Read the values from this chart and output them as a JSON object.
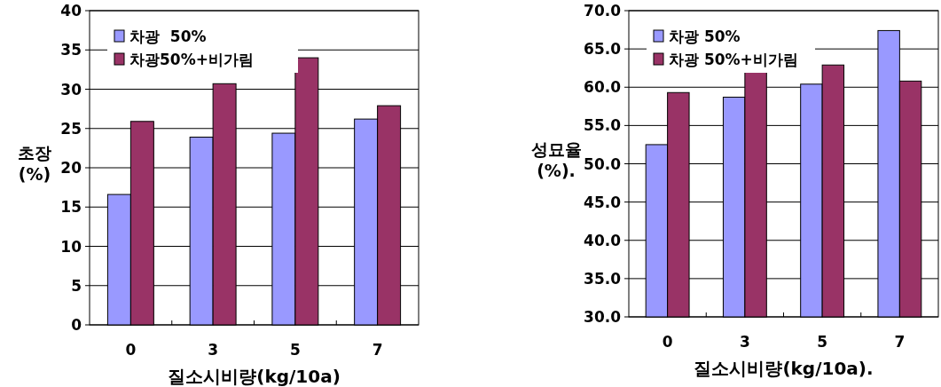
{
  "chart_data": [
    {
      "type": "bar",
      "ylabel": "초장\n(%)",
      "xlabel": "질소시비량(kg/10a)",
      "categories": [
        "0",
        "3",
        "5",
        "7"
      ],
      "ylim": [
        0,
        40
      ],
      "yticks": [
        0,
        5,
        10,
        15,
        20,
        25,
        30,
        35,
        40
      ],
      "grid": "y",
      "legend": "top left",
      "series": [
        {
          "name": "차광  50%",
          "color": "#9999ff",
          "values": [
            16.6,
            23.9,
            24.4,
            26.2
          ]
        },
        {
          "name": "차광50%+비가림",
          "color": "#993366",
          "values": [
            25.9,
            30.7,
            34.0,
            27.9
          ]
        }
      ]
    },
    {
      "type": "bar",
      "ylabel": "성묘율\n(%).",
      "xlabel": "질소시비량(kg/10a).",
      "categories": [
        "0",
        "3",
        "5",
        "7"
      ],
      "ylim": [
        30,
        70
      ],
      "yticks": [
        {
          "value": 30,
          "label": "30.0"
        },
        {
          "value": 35,
          "label": "35.0"
        },
        {
          "value": 40,
          "label": "40.0"
        },
        {
          "value": 45,
          "label": "45.0"
        },
        {
          "value": 50,
          "label": "50.0"
        },
        {
          "value": 55,
          "label": "55.0"
        },
        {
          "value": 60,
          "label": "60.0"
        },
        {
          "value": 65,
          "label": "65.0"
        },
        {
          "value": 70,
          "label": "70.0"
        }
      ],
      "grid": "y",
      "legend": "top left",
      "series": [
        {
          "name": "차광 50%",
          "color": "#9999ff",
          "values": [
            52.5,
            58.7,
            60.4,
            67.4
          ]
        },
        {
          "name": "차광 50%+비가림",
          "color": "#993366",
          "values": [
            59.3,
            62.1,
            62.9,
            60.8
          ]
        }
      ]
    }
  ]
}
